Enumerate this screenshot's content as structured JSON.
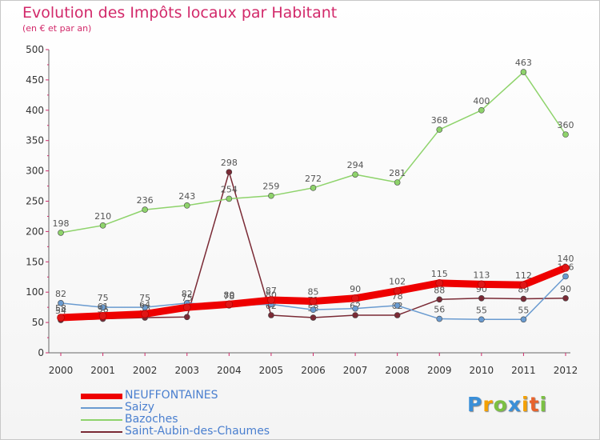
{
  "chart_data": {
    "type": "line",
    "title": "Evolution des Impôts locaux par Habitant",
    "subtitle": "(en € et par an)",
    "xlabel": "",
    "ylabel": "",
    "ylim": [
      0,
      500
    ],
    "yticks": [
      0,
      50,
      100,
      150,
      200,
      250,
      300,
      350,
      400,
      450,
      500
    ],
    "grid": false,
    "legend_position": "bottom-left",
    "x": [
      2000,
      2001,
      2002,
      2003,
      2004,
      2005,
      2006,
      2007,
      2008,
      2009,
      2010,
      2011,
      2012
    ],
    "series": [
      {
        "name": "Saint-Aubin-des-Chaumes",
        "color": "#7a2a35",
        "values": [
          54,
          56,
          58,
          59,
          298,
          62,
          58,
          62,
          62,
          88,
          90,
          89,
          90
        ],
        "labels": [
          "54",
          "56",
          "58",
          "59",
          "298",
          "62",
          "58",
          "62",
          "62",
          "88",
          "90",
          "89",
          "90"
        ]
      },
      {
        "name": "Bazoches",
        "color": "#8ed36b",
        "values": [
          198,
          210,
          236,
          243,
          254,
          259,
          272,
          294,
          281,
          368,
          400,
          463,
          360
        ],
        "labels": [
          "198",
          "210",
          "236",
          "243",
          "254",
          "259",
          "272",
          "294",
          "281",
          "368",
          "400",
          "463",
          "360"
        ]
      },
      {
        "name": "Saizy",
        "color": "#6a9bd0",
        "values": [
          82,
          75,
          75,
          82,
          78,
          80,
          71,
          73,
          78,
          56,
          55,
          55,
          126
        ],
        "labels": [
          "82",
          "75",
          "75",
          "82",
          "78",
          "80",
          "71",
          "73",
          "78",
          "56",
          "55",
          "55",
          "126"
        ]
      },
      {
        "name": "NEUFFONTAINES",
        "color": "#ee0000",
        "values": [
          58,
          61,
          64,
          75,
          80,
          87,
          85,
          90,
          102,
          115,
          113,
          112,
          140
        ],
        "labels": [
          "58",
          "61",
          "64",
          "75",
          "80",
          "87",
          "85",
          "90",
          "102",
          "115",
          "113",
          "112",
          "140"
        ]
      }
    ]
  },
  "legend": {
    "items": [
      {
        "label": "NEUFFONTAINES",
        "color": "#ee0000"
      },
      {
        "label": "Saizy",
        "color": "#6a9bd0"
      },
      {
        "label": "Bazoches",
        "color": "#8ed36b"
      },
      {
        "label": "Saint-Aubin-des-Chaumes",
        "color": "#7a2a35"
      }
    ]
  },
  "logo": {
    "letters": [
      "P",
      "r",
      "o",
      "x",
      "i",
      "t",
      "i"
    ],
    "colors": [
      "#3a8fd8",
      "#f4a000",
      "#7bc043",
      "#3a8fd8",
      "#f4a000",
      "#e8632c",
      "#7bc043"
    ]
  }
}
